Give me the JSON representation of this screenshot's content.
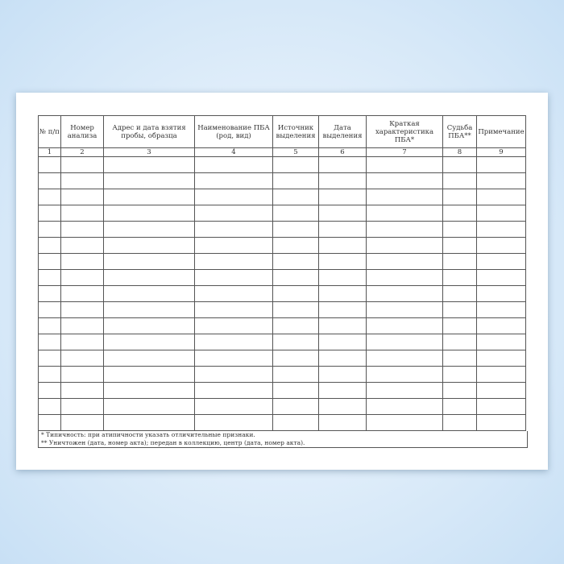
{
  "columns": [
    {
      "num": "1",
      "header": "№ п/п"
    },
    {
      "num": "2",
      "header": "Номер анализа"
    },
    {
      "num": "3",
      "header": "Адрес и дата взятия пробы, образца"
    },
    {
      "num": "4",
      "header": "Наименование ПБА (род, вид)"
    },
    {
      "num": "5",
      "header": "Источник выделения"
    },
    {
      "num": "6",
      "header": "Дата выделения"
    },
    {
      "num": "7",
      "header": "Краткая характеристика ПБА*"
    },
    {
      "num": "8",
      "header": "Судьба ПБА**"
    },
    {
      "num": "9",
      "header": "Примечание"
    }
  ],
  "footnotes": [
    "* Типичность: при атипичности указать отличительные признаки.",
    "** Уничтожен (дата, номер акта); передан в коллекцию, центр (дата, номер акта)."
  ]
}
